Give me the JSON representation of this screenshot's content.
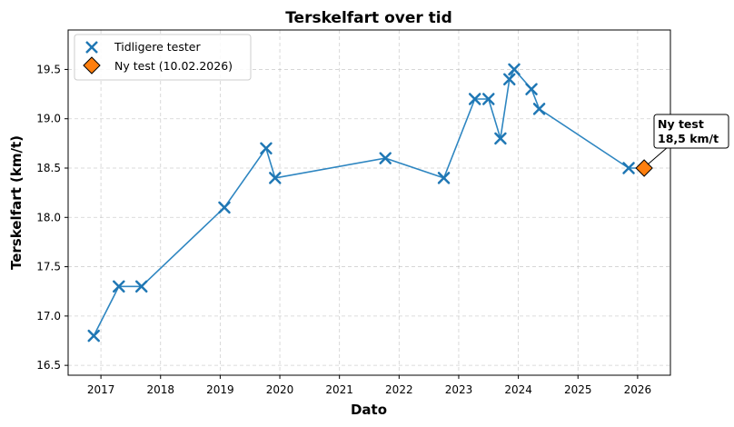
{
  "chart_data": {
    "type": "line",
    "title": "Terskelfart over tid",
    "xlabel": "Dato",
    "ylabel": "Terskelfart (km/t)",
    "xlim": [
      2016.45,
      2026.55
    ],
    "ylim": [
      16.4,
      19.9
    ],
    "x_ticks": [
      2017,
      2018,
      2019,
      2020,
      2021,
      2022,
      2023,
      2024,
      2025,
      2026
    ],
    "y_ticks": [
      16.5,
      17.0,
      17.5,
      18.0,
      18.5,
      19.0,
      19.5
    ],
    "y_tick_labels": [
      "16.5",
      "17.0",
      "17.5",
      "18.0",
      "18.5",
      "19.0",
      "19.5"
    ],
    "grid": true,
    "legend_position": "top-left",
    "series": [
      {
        "name": "Tidligere tester",
        "marker": "x",
        "color": "#1f77b4",
        "points": [
          {
            "x": 2016.88,
            "y": 16.8
          },
          {
            "x": 2017.3,
            "y": 17.3
          },
          {
            "x": 2017.68,
            "y": 17.3
          },
          {
            "x": 2019.07,
            "y": 18.1
          },
          {
            "x": 2019.77,
            "y": 18.7
          },
          {
            "x": 2019.92,
            "y": 18.4
          },
          {
            "x": 2021.77,
            "y": 18.6
          },
          {
            "x": 2022.75,
            "y": 18.4
          },
          {
            "x": 2023.27,
            "y": 19.2
          },
          {
            "x": 2023.5,
            "y": 19.2
          },
          {
            "x": 2023.7,
            "y": 18.8
          },
          {
            "x": 2023.85,
            "y": 19.4
          },
          {
            "x": 2023.93,
            "y": 19.5
          },
          {
            "x": 2024.22,
            "y": 19.3
          },
          {
            "x": 2024.35,
            "y": 19.1
          },
          {
            "x": 2025.85,
            "y": 18.5
          }
        ]
      },
      {
        "name": "Ny test (10.02.2026)",
        "marker": "diamond",
        "color": "#ff7f0e",
        "points": [
          {
            "x": 2026.11,
            "y": 18.5
          }
        ]
      }
    ],
    "line_color": "#2e86c1",
    "annotation": {
      "line1": "Ny test",
      "line2": "18,5 km/t"
    }
  }
}
